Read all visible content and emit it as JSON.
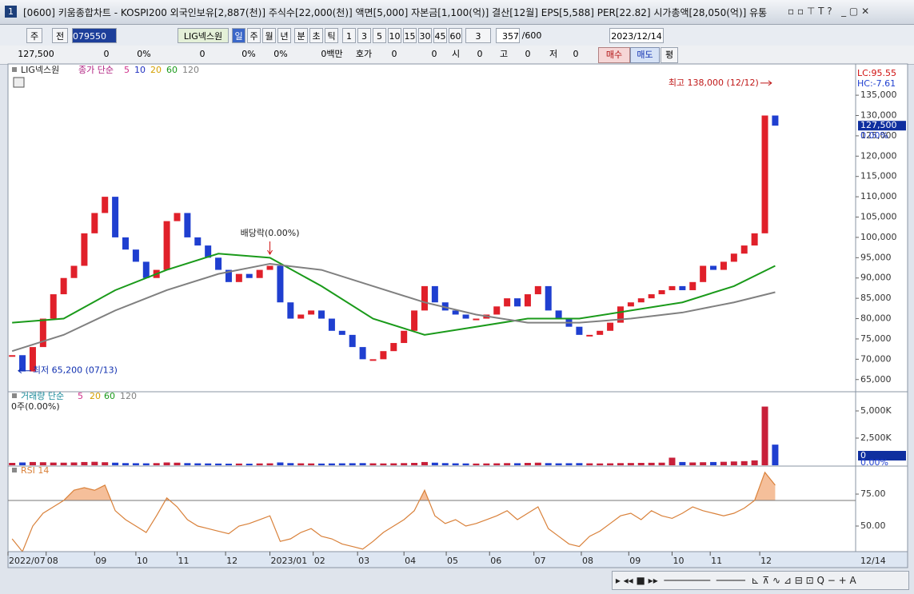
{
  "title_bar": {
    "number": "1",
    "text": "[0600] 키움종합차트 - KOSPI200 외국인보유[2,887(천)] 주식수[22,000(천)] 액면[5,000] 자본금[1,100(억)] 결산[12월] EPS[5,588] PER[22.82] 시가총액[28,050(억)] 유통"
  },
  "toolbar": {
    "items": [
      "주",
      "전",
      "079550",
      "LIG넥스원",
      "일",
      "주",
      "월",
      "년",
      "분",
      "초",
      "틱",
      "1",
      "3",
      "5",
      "10",
      "15",
      "30",
      "45",
      "60",
      "3",
      "357",
      "/600",
      "2023/12/14"
    ]
  },
  "quote_row": {
    "items": [
      "127,500",
      "0",
      "0%",
      "0",
      "0%",
      "0%",
      "0백만",
      "호가",
      "0",
      "0",
      "시",
      "0",
      "고",
      "0",
      "저",
      "0",
      "매수",
      "매도",
      "평"
    ]
  },
  "chart_data": [
    {
      "type": "candle",
      "legend_name": "LIG넥스원",
      "legend_label": "종가 단순",
      "values": [
        71000,
        67000,
        73000,
        80000,
        86000,
        90000,
        93000,
        101000,
        106000,
        110000,
        100000,
        97000,
        94000,
        90000,
        92000,
        104000,
        106000,
        100000,
        98000,
        95000,
        92000,
        89000,
        91000,
        90000,
        92000,
        93000,
        84000,
        80000,
        81000,
        82000,
        80000,
        77000,
        76000,
        73000,
        70000,
        70000,
        72000,
        74000,
        77000,
        82000,
        88000,
        84000,
        82000,
        81000,
        80000,
        80000,
        81000,
        83000,
        85000,
        83000,
        86000,
        88000,
        82000,
        80000,
        78000,
        76000,
        76000,
        77000,
        79000,
        83000,
        84000,
        85000,
        86000,
        87000,
        88000,
        87000,
        89000,
        93000,
        92000,
        94000,
        96000,
        98000,
        101000,
        130000,
        127500
      ],
      "up_color": "#e0202a",
      "down_color": "#1f3fd0",
      "xlim": [
        -0.4,
        81.8
      ],
      "ylim": [
        62000,
        142300
      ],
      "yticks": [
        {
          "value": 135000,
          "label": "135,000"
        },
        {
          "value": 130000,
          "label": "130,000"
        },
        {
          "value": 125000,
          "label": "125,000"
        },
        {
          "value": 120000,
          "label": "120,000"
        },
        {
          "value": 115000,
          "label": "115,000"
        },
        {
          "value": 110000,
          "label": "110,000"
        },
        {
          "value": 105000,
          "label": "105,000"
        },
        {
          "value": 100000,
          "label": "100,000"
        },
        {
          "value": 95000,
          "label": "95,000"
        },
        {
          "value": 90000,
          "label": "90,000"
        },
        {
          "value": 85000,
          "label": "85,000"
        },
        {
          "value": 80000,
          "label": "80,000"
        },
        {
          "value": 75000,
          "label": "75,000"
        },
        {
          "value": 70000,
          "label": "70,000"
        },
        {
          "value": 65000,
          "label": "65,000"
        }
      ],
      "ma_series": [
        {
          "name": "5",
          "color": "#d0308a"
        },
        {
          "name": "10",
          "color": "#1f2fc0"
        },
        {
          "name": "20",
          "color": "#d4a000"
        },
        {
          "name": "60",
          "color": "#1a9a1a",
          "x": [
            0,
            5,
            10,
            15,
            20,
            25,
            30,
            35,
            40,
            45,
            50,
            55,
            60,
            65,
            70,
            74
          ],
          "values": [
            79000,
            80000,
            87000,
            92000,
            96000,
            95000,
            88000,
            80000,
            76000,
            78000,
            80000,
            80000,
            82000,
            84000,
            88000,
            93000
          ]
        },
        {
          "name": "120",
          "color": "#808080",
          "x": [
            0,
            5,
            10,
            15,
            20,
            25,
            30,
            35,
            40,
            45,
            50,
            55,
            60,
            65,
            70,
            74
          ],
          "values": [
            72000,
            76000,
            82000,
            87000,
            91000,
            93500,
            92000,
            88000,
            84000,
            81000,
            79000,
            79000,
            80000,
            81500,
            84000,
            86500
          ]
        }
      ],
      "current": {
        "value": 127500,
        "label": "127,500"
      },
      "change_label": "0.00%",
      "lc_label": "LC:95.55",
      "hc_label": "HC:-7.61",
      "annotations": [
        {
          "text": "최고 138,000 (12/12)",
          "x": 73.8,
          "value": 138000
        },
        {
          "text": "최저 65,200 (07/13)",
          "x": 0.6,
          "value": 65200
        },
        {
          "text": "배당락(0.00%)",
          "x": 25,
          "value": 95000
        }
      ]
    },
    {
      "type": "bar",
      "legend_label": "거래량 단순",
      "ma_series": [
        {
          "name": "5",
          "color": "#d0308a"
        },
        {
          "name": "20",
          "color": "#d4a000"
        },
        {
          "name": "60",
          "color": "#1a9a1a"
        },
        {
          "name": "120",
          "color": "#808080"
        }
      ],
      "status": "0주(0.00%)",
      "values": [
        220,
        260,
        300,
        280,
        250,
        240,
        260,
        300,
        320,
        280,
        240,
        200,
        190,
        180,
        200,
        260,
        240,
        200,
        180,
        170,
        160,
        150,
        160,
        150,
        170,
        180,
        260,
        200,
        180,
        170,
        160,
        170,
        180,
        190,
        200,
        180,
        170,
        180,
        200,
        220,
        300,
        240,
        200,
        180,
        170,
        160,
        170,
        180,
        200,
        190,
        220,
        240,
        200,
        180,
        190,
        200,
        180,
        170,
        180,
        200,
        210,
        220,
        230,
        240,
        700,
        300,
        260,
        280,
        300,
        320,
        350,
        380,
        450,
        5400,
        1900
      ],
      "color": "#c8203a",
      "xlim": [
        -0.4,
        81.8
      ],
      "ylim": [
        0,
        6765
      ],
      "yticks": [
        {
          "value": 5000,
          "label": "5,000K"
        },
        {
          "value": 2500,
          "label": "2,500K"
        }
      ],
      "current": {
        "value": 0,
        "label": "0"
      },
      "change_label": "0.00%"
    },
    {
      "type": "line",
      "legend_label": "RSI 14",
      "values": [
        40,
        30,
        50,
        60,
        65,
        70,
        78,
        80,
        78,
        82,
        62,
        55,
        50,
        45,
        58,
        72,
        65,
        55,
        50,
        48,
        46,
        44,
        50,
        52,
        55,
        58,
        38,
        40,
        45,
        48,
        42,
        40,
        36,
        34,
        32,
        38,
        45,
        50,
        55,
        62,
        78,
        58,
        52,
        55,
        50,
        52,
        55,
        58,
        62,
        55,
        60,
        65,
        48,
        42,
        36,
        34,
        42,
        46,
        52,
        58,
        60,
        55,
        62,
        58,
        56,
        60,
        65,
        62,
        60,
        58,
        60,
        64,
        70,
        92,
        82
      ],
      "color": "#d9813a",
      "fill_color": "#f5bf9a",
      "reference": 70,
      "xlim": [
        -0.4,
        81.8
      ],
      "ylim": [
        30,
        96.9
      ],
      "yticks": [
        {
          "value": 75,
          "label": "75.00"
        },
        {
          "value": 50,
          "label": "50.00"
        }
      ],
      "xticks": [
        {
          "value": -0.4,
          "label": "2022/07"
        },
        {
          "value": 3.3,
          "label": "08"
        },
        {
          "value": 8,
          "label": "09"
        },
        {
          "value": 12,
          "label": "10"
        },
        {
          "value": 16,
          "label": "11"
        },
        {
          "value": 20.7,
          "label": "12"
        },
        {
          "value": 25,
          "label": "2023/01"
        },
        {
          "value": 29.2,
          "label": "02"
        },
        {
          "value": 33.5,
          "label": "03"
        },
        {
          "value": 38,
          "label": "04"
        },
        {
          "value": 42.1,
          "label": "05"
        },
        {
          "value": 46.3,
          "label": "06"
        },
        {
          "value": 50.6,
          "label": "07"
        },
        {
          "value": 55.2,
          "label": "08"
        },
        {
          "value": 59.8,
          "label": "09"
        },
        {
          "value": 64,
          "label": "10"
        },
        {
          "value": 67.7,
          "label": "11"
        },
        {
          "value": 72.5,
          "label": "12"
        }
      ],
      "x_end_label": "12/14"
    }
  ]
}
